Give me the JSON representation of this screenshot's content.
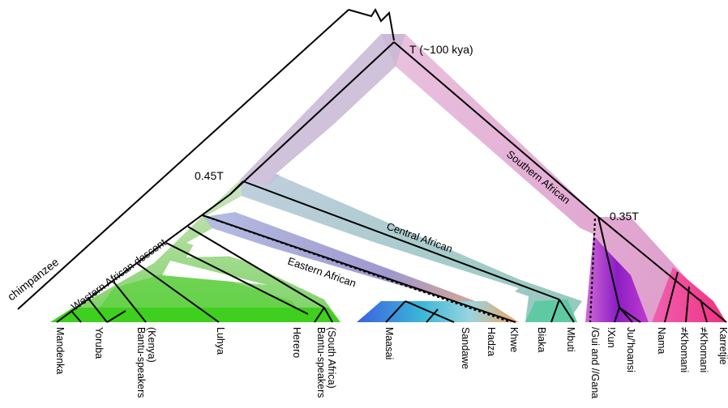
{
  "outgroup": {
    "label": "chimpanzee"
  },
  "nodes": {
    "root": "T (~100 kya)",
    "split_045": "0.45T",
    "split_035": "0.35T"
  },
  "clades": {
    "southern": "Southern African",
    "central": "Central African",
    "eastern": "Eastern African",
    "western": "Western African descent"
  },
  "populations": [
    "Mandenka",
    "Yoruba",
    "Bantu-speakers (Kenya)",
    "Luhya",
    "Herero",
    "Bantu-speakers (South Africa)",
    "Maasai",
    "Sandawe",
    "Hadza",
    "Khwe",
    "Biaka",
    "Mbuti",
    "/Gui and //Gana",
    "!Xun",
    "Ju/'hoansi",
    "Nama",
    "≠Khomani",
    "≠Khomani",
    "Karretjie"
  ],
  "colors": {
    "southern": "#d98fc4",
    "central": "#8fb8b0",
    "eastern": "#7f8fd6",
    "western": "#5fd13a",
    "tree_line": "#000000"
  }
}
